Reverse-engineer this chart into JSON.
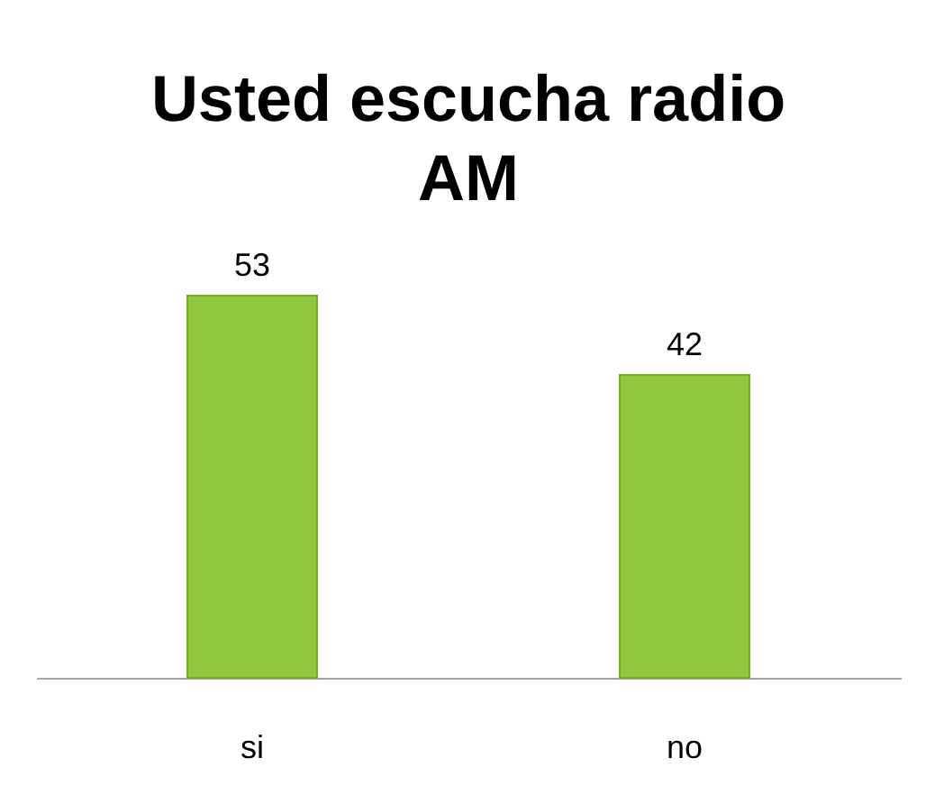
{
  "chart_data": {
    "type": "bar",
    "title": "Usted escucha radio AM",
    "categories": [
      "si",
      "no"
    ],
    "values": [
      53,
      42
    ],
    "color": "#92c83e",
    "data_labels": true,
    "grid": false,
    "tick_labels": "x"
  }
}
